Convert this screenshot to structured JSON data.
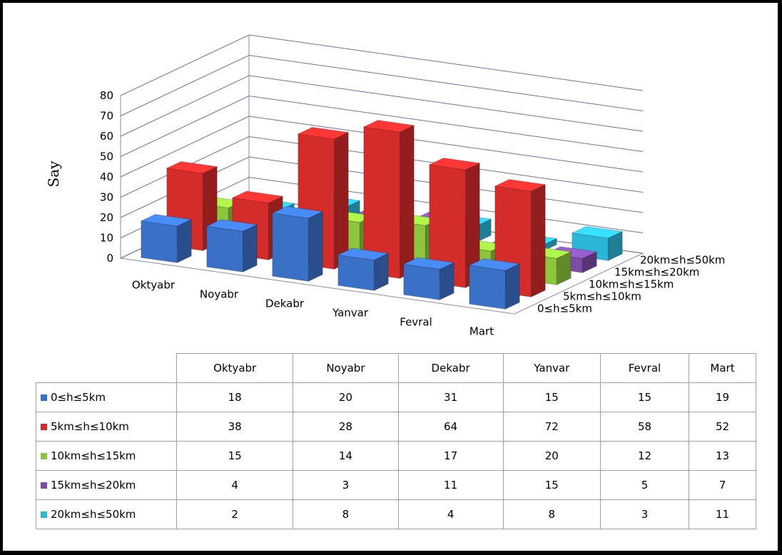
{
  "chart_data": {
    "type": "bar3d",
    "ylabel": "Say",
    "categories": [
      "Oktyabr",
      "Noyabr",
      "Dekabr",
      "Yanvar",
      "Fevral",
      "Mart"
    ],
    "series": [
      {
        "name": "0≤h≤5km",
        "color": "#3a70c6",
        "values": [
          18,
          20,
          31,
          15,
          15,
          19
        ]
      },
      {
        "name": "5km≤h≤10km",
        "color": "#d42b2b",
        "values": [
          38,
          28,
          64,
          72,
          58,
          52
        ]
      },
      {
        "name": "10km≤h≤15km",
        "color": "#8dc53c",
        "values": [
          15,
          14,
          17,
          20,
          12,
          13
        ]
      },
      {
        "name": "15km≤h≤20km",
        "color": "#7b4ca8",
        "values": [
          4,
          3,
          11,
          15,
          5,
          7
        ]
      },
      {
        "name": "20km≤h≤50km",
        "color": "#2bb5d6",
        "values": [
          2,
          8,
          4,
          8,
          3,
          11
        ]
      }
    ],
    "ylim": [
      0,
      80
    ],
    "yticks": [
      0,
      10,
      20,
      30,
      40,
      50,
      60,
      70,
      80
    ],
    "grid": true
  }
}
